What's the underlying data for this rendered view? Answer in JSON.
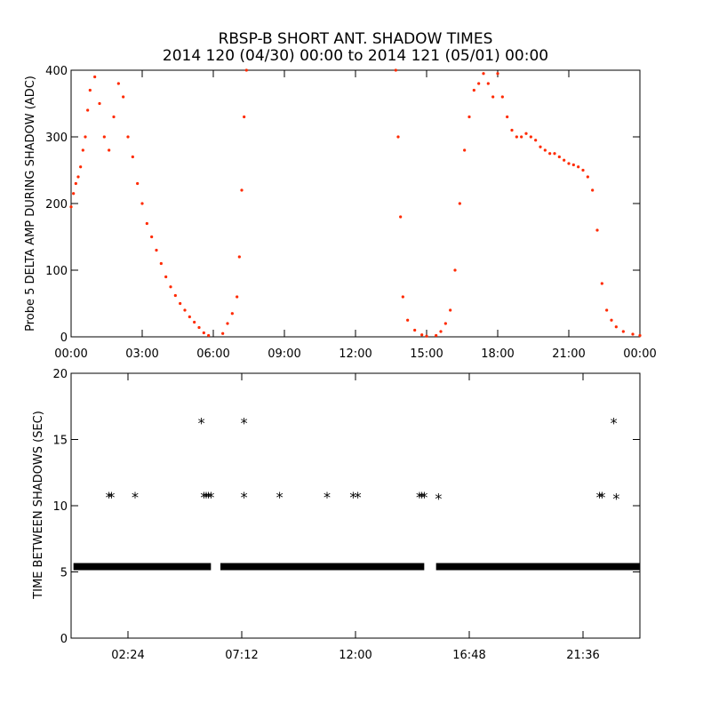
{
  "figure": {
    "title_line1": "RBSP-B SHORT ANT. SHADOW TIMES",
    "title_line2": "2014 120 (04/30) 00:00 to 2014 121 (05/01) 00:00"
  },
  "chart_data": [
    {
      "type": "scatter",
      "ylabel": "Probe 5 DELTA AMP DURING SHADOW (ADC)",
      "xlabel": "",
      "xlim": [
        0,
        24
      ],
      "ylim": [
        0,
        400
      ],
      "x_ticks": [
        0,
        3,
        6,
        9,
        12,
        15,
        18,
        21,
        24
      ],
      "x_tick_labels": [
        "00:00",
        "03:00",
        "06:00",
        "09:00",
        "12:00",
        "15:00",
        "18:00",
        "21:00",
        "00:00"
      ],
      "y_ticks": [
        0,
        100,
        200,
        300,
        400
      ],
      "y_tick_labels": [
        "0",
        "100",
        "200",
        "300",
        "400"
      ],
      "marker_color": "#ff2a00",
      "series": [
        {
          "points": [
            [
              0.0,
              195
            ],
            [
              0.1,
              215
            ],
            [
              0.2,
              230
            ],
            [
              0.3,
              240
            ],
            [
              0.4,
              255
            ],
            [
              0.5,
              280
            ],
            [
              0.6,
              300
            ],
            [
              0.7,
              340
            ],
            [
              0.8,
              370
            ],
            [
              1.0,
              390
            ],
            [
              1.2,
              350
            ],
            [
              1.4,
              300
            ],
            [
              1.6,
              280
            ],
            [
              1.8,
              330
            ],
            [
              2.0,
              380
            ],
            [
              2.2,
              360
            ],
            [
              2.4,
              300
            ],
            [
              2.6,
              270
            ],
            [
              2.8,
              230
            ],
            [
              3.0,
              200
            ],
            [
              3.2,
              170
            ],
            [
              3.4,
              150
            ],
            [
              3.6,
              130
            ],
            [
              3.8,
              110
            ],
            [
              4.0,
              90
            ],
            [
              4.2,
              75
            ],
            [
              4.4,
              62
            ],
            [
              4.6,
              50
            ],
            [
              4.8,
              40
            ],
            [
              5.0,
              30
            ],
            [
              5.2,
              22
            ],
            [
              5.4,
              14
            ],
            [
              5.6,
              6
            ],
            [
              5.8,
              2
            ],
            [
              6.4,
              5
            ],
            [
              6.6,
              20
            ],
            [
              6.8,
              35
            ],
            [
              7.0,
              60
            ],
            [
              7.1,
              120
            ],
            [
              7.2,
              220
            ],
            [
              7.3,
              330
            ],
            [
              7.4,
              400
            ],
            [
              13.7,
              400
            ],
            [
              13.8,
              300
            ],
            [
              13.9,
              180
            ],
            [
              14.0,
              60
            ],
            [
              14.2,
              25
            ],
            [
              14.5,
              10
            ],
            [
              14.8,
              3
            ],
            [
              15.0,
              1
            ],
            [
              15.4,
              2
            ],
            [
              15.6,
              8
            ],
            [
              15.8,
              20
            ],
            [
              16.0,
              40
            ],
            [
              16.2,
              100
            ],
            [
              16.4,
              200
            ],
            [
              16.6,
              280
            ],
            [
              16.8,
              330
            ],
            [
              17.0,
              370
            ],
            [
              17.2,
              380
            ],
            [
              17.4,
              395
            ],
            [
              17.6,
              380
            ],
            [
              17.8,
              360
            ],
            [
              18.0,
              395
            ],
            [
              18.2,
              360
            ],
            [
              18.4,
              330
            ],
            [
              18.6,
              310
            ],
            [
              18.8,
              300
            ],
            [
              19.0,
              300
            ],
            [
              19.2,
              305
            ],
            [
              19.4,
              300
            ],
            [
              19.6,
              295
            ],
            [
              19.8,
              285
            ],
            [
              20.0,
              280
            ],
            [
              20.2,
              275
            ],
            [
              20.4,
              275
            ],
            [
              20.6,
              270
            ],
            [
              20.8,
              265
            ],
            [
              21.0,
              260
            ],
            [
              21.2,
              258
            ],
            [
              21.4,
              255
            ],
            [
              21.6,
              250
            ],
            [
              21.8,
              240
            ],
            [
              22.0,
              220
            ],
            [
              22.2,
              160
            ],
            [
              22.4,
              80
            ],
            [
              22.6,
              40
            ],
            [
              22.8,
              25
            ],
            [
              23.0,
              15
            ],
            [
              23.3,
              8
            ],
            [
              23.7,
              4
            ],
            [
              24.0,
              2
            ]
          ]
        }
      ]
    },
    {
      "type": "scatter",
      "ylabel": "TIME BETWEEN SHADOWS (SEC)",
      "xlabel": "",
      "xlim": [
        0,
        24
      ],
      "ylim": [
        0,
        20
      ],
      "x_ticks": [
        2.4,
        7.2,
        12.0,
        16.8,
        21.6
      ],
      "x_tick_labels": [
        "02:24",
        "07:12",
        "12:00",
        "16:48",
        "21:36"
      ],
      "y_ticks": [
        0,
        5,
        10,
        15,
        20
      ],
      "y_tick_labels": [
        "0",
        "5",
        "10",
        "15",
        "20"
      ],
      "marker": "*",
      "marker_color": "#000000",
      "baseline": {
        "y": 5.4,
        "segments": [
          [
            0.1,
            5.9
          ],
          [
            6.3,
            14.9
          ],
          [
            15.4,
            24.0
          ]
        ]
      },
      "series": [
        {
          "points": [
            [
              1.6,
              10.8
            ],
            [
              1.7,
              10.8
            ],
            [
              2.7,
              10.8
            ],
            [
              5.5,
              16.4
            ],
            [
              5.6,
              10.8
            ],
            [
              5.7,
              10.8
            ],
            [
              5.8,
              10.8
            ],
            [
              5.9,
              10.8
            ],
            [
              7.3,
              16.4
            ],
            [
              7.3,
              10.8
            ],
            [
              8.8,
              10.8
            ],
            [
              10.8,
              10.8
            ],
            [
              11.9,
              10.8
            ],
            [
              12.1,
              10.8
            ],
            [
              14.7,
              10.8
            ],
            [
              14.8,
              10.8
            ],
            [
              14.9,
              10.8
            ],
            [
              15.5,
              10.7
            ],
            [
              22.3,
              10.8
            ],
            [
              22.4,
              10.8
            ],
            [
              22.9,
              16.4
            ],
            [
              23.0,
              10.7
            ]
          ]
        }
      ]
    }
  ]
}
